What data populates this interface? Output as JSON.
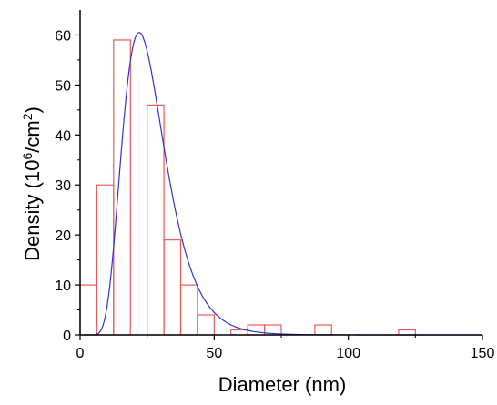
{
  "chart_data": {
    "type": "bar",
    "xlabel": "Diameter (nm)",
    "ylabel_main": "Density (10",
    "ylabel_sup1": "6",
    "ylabel_mid": "/cm",
    "ylabel_sup2": "2",
    "ylabel_end": ")",
    "xlim": [
      0,
      150
    ],
    "ylim": [
      0,
      65
    ],
    "xticks": [
      0,
      50,
      100,
      150
    ],
    "yticks": [
      0,
      10,
      20,
      30,
      40,
      50,
      60
    ],
    "bin_width": 6.25,
    "bins": [
      {
        "x0": 0.0,
        "value": 10
      },
      {
        "x0": 6.25,
        "value": 30
      },
      {
        "x0": 12.5,
        "value": 59
      },
      {
        "x0": 25.0,
        "value": 46
      },
      {
        "x0": 31.25,
        "value": 19
      },
      {
        "x0": 37.5,
        "value": 10
      },
      {
        "x0": 43.75,
        "value": 4
      },
      {
        "x0": 56.25,
        "value": 1
      },
      {
        "x0": 62.5,
        "value": 2
      },
      {
        "x0": 68.75,
        "value": 2
      },
      {
        "x0": 87.5,
        "value": 2
      },
      {
        "x0": 118.75,
        "value": 1
      }
    ],
    "fit_curve": {
      "type": "lognormal",
      "amplitude": 60.5,
      "mode": 22,
      "sigma": 0.36
    },
    "colors": {
      "bar_edge": "#e85a5a",
      "fit_line": "#3333cc",
      "axis": "#000000"
    }
  }
}
